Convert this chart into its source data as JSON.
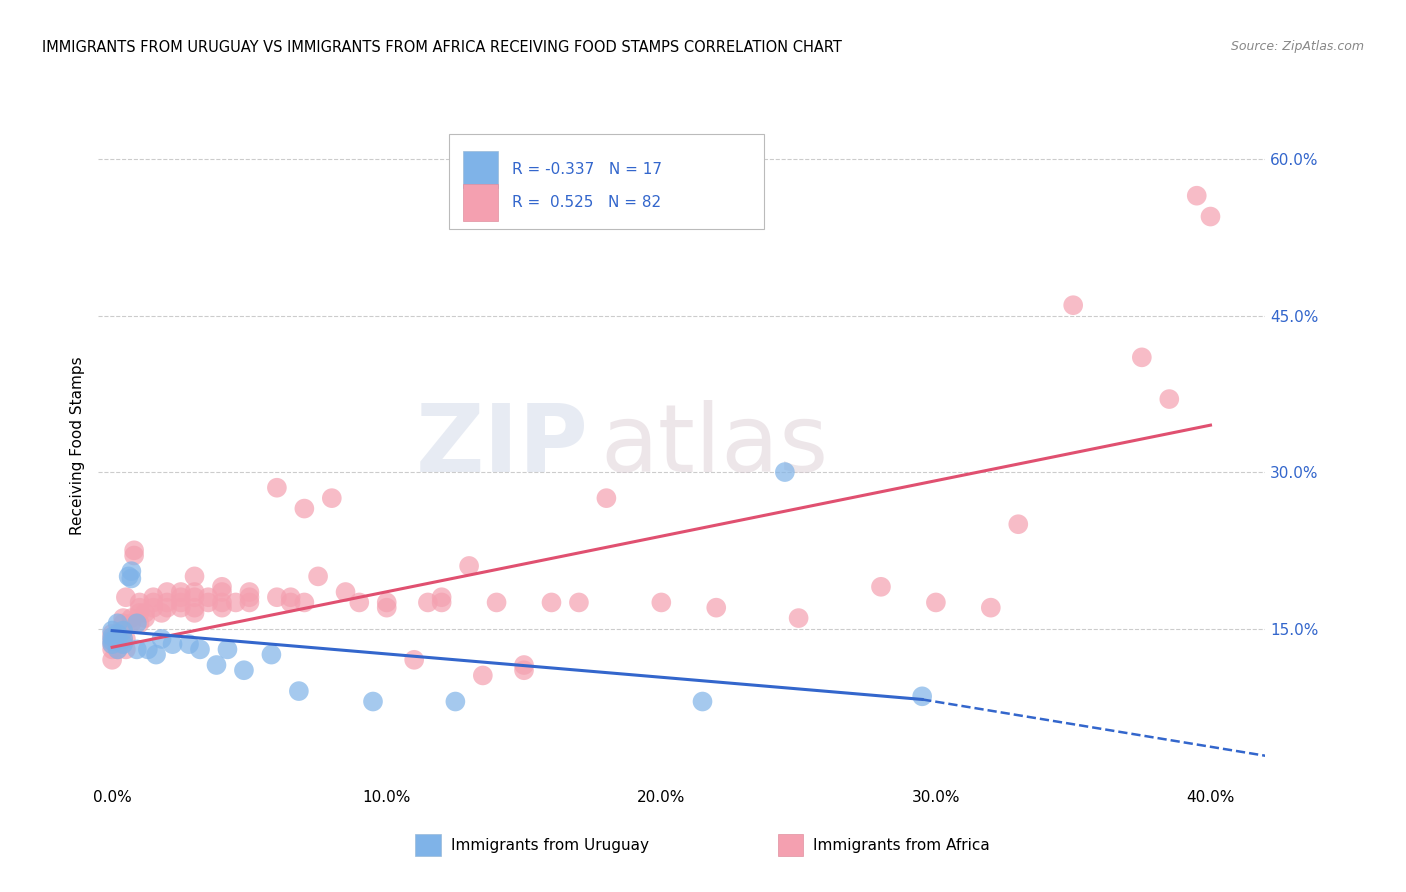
{
  "title": "IMMIGRANTS FROM URUGUAY VS IMMIGRANTS FROM AFRICA RECEIVING FOOD STAMPS CORRELATION CHART",
  "source": "Source: ZipAtlas.com",
  "ylabel": "Receiving Food Stamps",
  "x_tick_labels": [
    "0.0%",
    "",
    "10.0%",
    "",
    "20.0%",
    "",
    "30.0%",
    "",
    "40.0%"
  ],
  "x_tick_vals": [
    0.0,
    0.05,
    0.1,
    0.15,
    0.2,
    0.25,
    0.3,
    0.35,
    0.4
  ],
  "y_tick_labels": [
    "15.0%",
    "30.0%",
    "45.0%",
    "60.0%"
  ],
  "y_tick_vals": [
    0.15,
    0.3,
    0.45,
    0.6
  ],
  "xlim": [
    -0.005,
    0.42
  ],
  "ylim": [
    0.0,
    0.65
  ],
  "color_uruguay": "#7FB3E8",
  "color_africa": "#F4A0B0",
  "color_blue_line": "#3366CC",
  "color_pink_line": "#E05070",
  "grid_color": "#CCCCCC",
  "bg_color": "#FFFFFF",
  "watermark_zip": "ZIP",
  "watermark_atlas": "atlas",
  "title_fontsize": 10.5,
  "uruguay_points": [
    [
      0.0,
      0.135
    ],
    [
      0.0,
      0.142
    ],
    [
      0.0,
      0.148
    ],
    [
      0.0,
      0.138
    ],
    [
      0.002,
      0.145
    ],
    [
      0.002,
      0.14
    ],
    [
      0.002,
      0.13
    ],
    [
      0.002,
      0.155
    ],
    [
      0.004,
      0.135
    ],
    [
      0.004,
      0.14
    ],
    [
      0.004,
      0.148
    ],
    [
      0.006,
      0.2
    ],
    [
      0.007,
      0.205
    ],
    [
      0.007,
      0.198
    ],
    [
      0.009,
      0.13
    ],
    [
      0.009,
      0.155
    ],
    [
      0.013,
      0.13
    ],
    [
      0.016,
      0.125
    ],
    [
      0.018,
      0.14
    ],
    [
      0.022,
      0.135
    ],
    [
      0.028,
      0.135
    ],
    [
      0.032,
      0.13
    ],
    [
      0.038,
      0.115
    ],
    [
      0.042,
      0.13
    ],
    [
      0.048,
      0.11
    ],
    [
      0.058,
      0.125
    ],
    [
      0.068,
      0.09
    ],
    [
      0.095,
      0.08
    ],
    [
      0.125,
      0.08
    ],
    [
      0.215,
      0.08
    ],
    [
      0.245,
      0.3
    ],
    [
      0.295,
      0.085
    ]
  ],
  "africa_points": [
    [
      0.0,
      0.12
    ],
    [
      0.0,
      0.13
    ],
    [
      0.0,
      0.135
    ],
    [
      0.0,
      0.14
    ],
    [
      0.0,
      0.145
    ],
    [
      0.002,
      0.14
    ],
    [
      0.002,
      0.135
    ],
    [
      0.002,
      0.13
    ],
    [
      0.004,
      0.14
    ],
    [
      0.004,
      0.155
    ],
    [
      0.004,
      0.16
    ],
    [
      0.005,
      0.13
    ],
    [
      0.005,
      0.14
    ],
    [
      0.005,
      0.18
    ],
    [
      0.007,
      0.155
    ],
    [
      0.007,
      0.16
    ],
    [
      0.008,
      0.22
    ],
    [
      0.008,
      0.225
    ],
    [
      0.01,
      0.155
    ],
    [
      0.01,
      0.165
    ],
    [
      0.01,
      0.17
    ],
    [
      0.01,
      0.175
    ],
    [
      0.012,
      0.16
    ],
    [
      0.012,
      0.165
    ],
    [
      0.015,
      0.17
    ],
    [
      0.015,
      0.175
    ],
    [
      0.015,
      0.18
    ],
    [
      0.018,
      0.165
    ],
    [
      0.02,
      0.17
    ],
    [
      0.02,
      0.175
    ],
    [
      0.02,
      0.185
    ],
    [
      0.025,
      0.17
    ],
    [
      0.025,
      0.175
    ],
    [
      0.025,
      0.18
    ],
    [
      0.025,
      0.185
    ],
    [
      0.03,
      0.165
    ],
    [
      0.03,
      0.17
    ],
    [
      0.03,
      0.18
    ],
    [
      0.03,
      0.185
    ],
    [
      0.03,
      0.2
    ],
    [
      0.035,
      0.175
    ],
    [
      0.035,
      0.18
    ],
    [
      0.04,
      0.17
    ],
    [
      0.04,
      0.175
    ],
    [
      0.04,
      0.185
    ],
    [
      0.04,
      0.19
    ],
    [
      0.045,
      0.175
    ],
    [
      0.05,
      0.175
    ],
    [
      0.05,
      0.18
    ],
    [
      0.05,
      0.185
    ],
    [
      0.06,
      0.18
    ],
    [
      0.06,
      0.285
    ],
    [
      0.065,
      0.175
    ],
    [
      0.065,
      0.18
    ],
    [
      0.07,
      0.265
    ],
    [
      0.07,
      0.175
    ],
    [
      0.075,
      0.2
    ],
    [
      0.08,
      0.275
    ],
    [
      0.085,
      0.185
    ],
    [
      0.09,
      0.175
    ],
    [
      0.1,
      0.17
    ],
    [
      0.1,
      0.175
    ],
    [
      0.11,
      0.12
    ],
    [
      0.115,
      0.175
    ],
    [
      0.12,
      0.175
    ],
    [
      0.12,
      0.18
    ],
    [
      0.13,
      0.21
    ],
    [
      0.135,
      0.105
    ],
    [
      0.14,
      0.175
    ],
    [
      0.15,
      0.11
    ],
    [
      0.15,
      0.115
    ],
    [
      0.16,
      0.175
    ],
    [
      0.17,
      0.175
    ],
    [
      0.18,
      0.275
    ],
    [
      0.2,
      0.175
    ],
    [
      0.22,
      0.17
    ],
    [
      0.25,
      0.16
    ],
    [
      0.28,
      0.19
    ],
    [
      0.3,
      0.175
    ],
    [
      0.32,
      0.17
    ],
    [
      0.33,
      0.25
    ],
    [
      0.35,
      0.46
    ],
    [
      0.375,
      0.41
    ],
    [
      0.385,
      0.37
    ],
    [
      0.395,
      0.565
    ],
    [
      0.4,
      0.545
    ]
  ],
  "blue_line": {
    "x": [
      0.0,
      0.295
    ],
    "y": [
      0.148,
      0.082
    ]
  },
  "blue_dashed": {
    "x": [
      0.295,
      0.42
    ],
    "y": [
      0.082,
      0.028
    ]
  },
  "pink_line": {
    "x": [
      0.0,
      0.4
    ],
    "y": [
      0.132,
      0.345
    ]
  }
}
